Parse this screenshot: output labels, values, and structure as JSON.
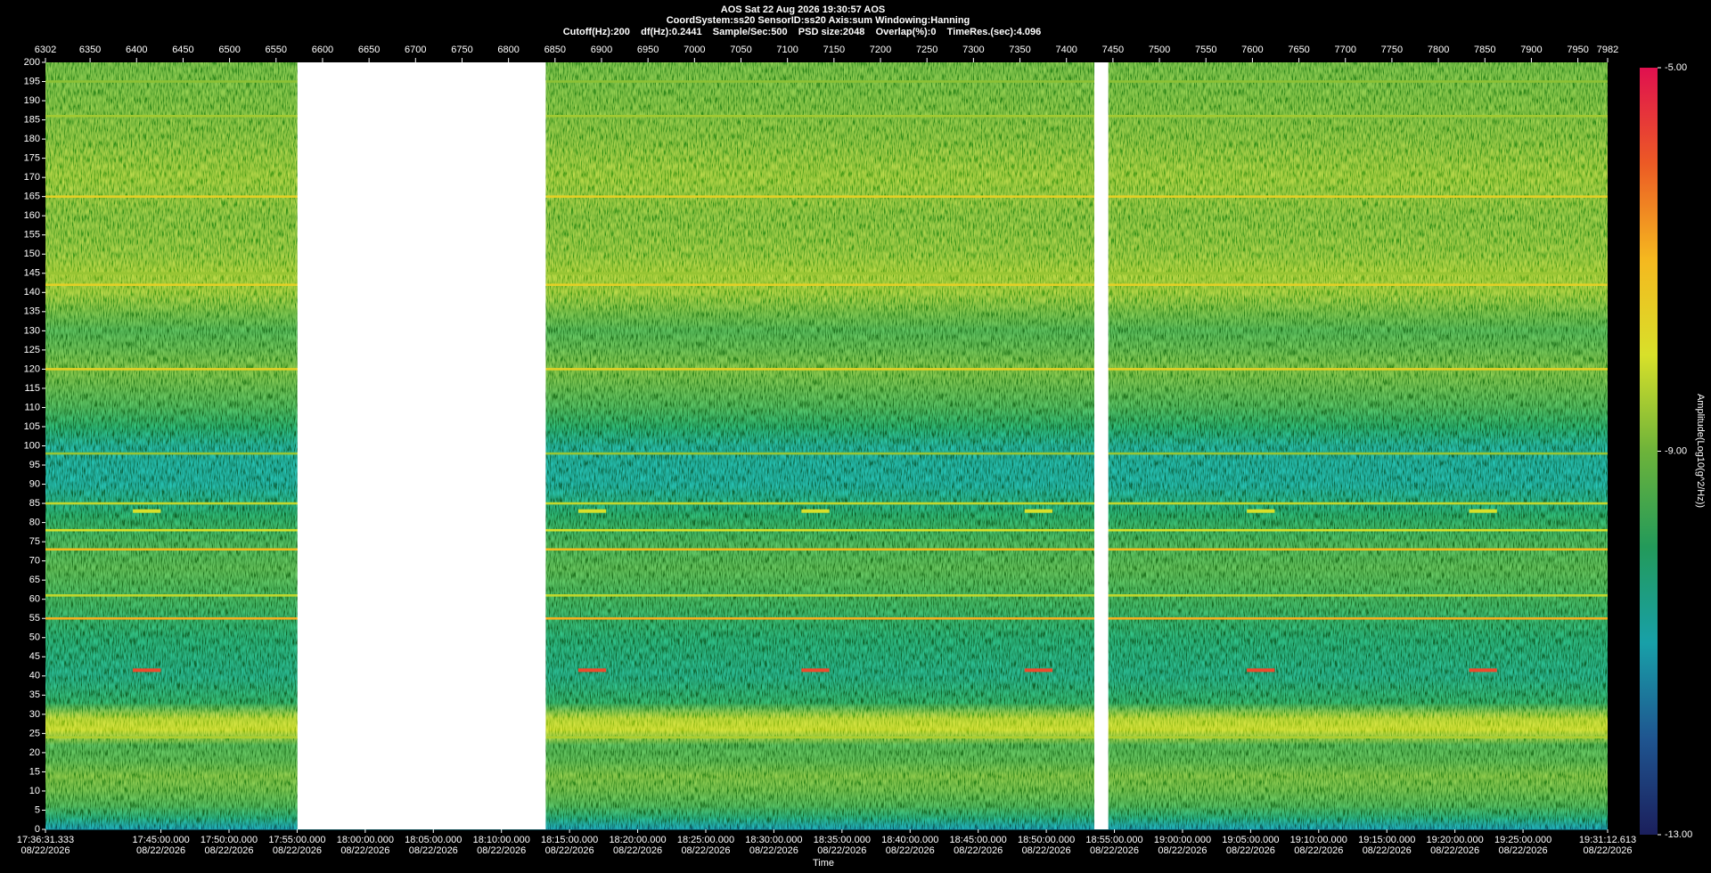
{
  "chart_data": {
    "type": "spectrogram",
    "title": "AOS  Sat 22 Aug 2026 19:30:57  AOS",
    "subtitle": "CoordSystem:ss20   SensorID:ss20   Axis:sum   Windowing:Hanning",
    "settings_line": "Cutoff(Hz):200    df(Hz):0.2441    Sample/Sec:500    PSD size:2048    Overlap(%):0    TimeRes.(sec):4.096",
    "xlabel": "Time",
    "xlim": [
      6302,
      7982
    ],
    "xticks": [
      6302,
      6350,
      6400,
      6450,
      6500,
      6550,
      6600,
      6650,
      6700,
      6750,
      6800,
      6850,
      6900,
      6950,
      7000,
      7050,
      7100,
      7150,
      7200,
      7250,
      7300,
      7350,
      7400,
      7450,
      7500,
      7550,
      7600,
      7650,
      7700,
      7750,
      7800,
      7850,
      7900,
      7950,
      7982
    ],
    "ylim": [
      0,
      200
    ],
    "yticks": [
      0,
      5,
      10,
      15,
      20,
      25,
      30,
      35,
      40,
      45,
      50,
      55,
      60,
      65,
      70,
      75,
      80,
      85,
      90,
      95,
      100,
      105,
      110,
      115,
      120,
      125,
      130,
      135,
      140,
      145,
      150,
      155,
      160,
      165,
      170,
      175,
      180,
      185,
      190,
      195,
      200
    ],
    "date": "08/22/2026",
    "time_ticks": [
      {
        "value": 63391.333,
        "label": "17:36:31.333"
      },
      {
        "value": 63900,
        "label": "17:45:00.000"
      },
      {
        "value": 64200,
        "label": "17:50:00.000"
      },
      {
        "value": 64500,
        "label": "17:55:00.000"
      },
      {
        "value": 64800,
        "label": "18:00:00.000"
      },
      {
        "value": 65100,
        "label": "18:05:00.000"
      },
      {
        "value": 65400,
        "label": "18:10:00.000"
      },
      {
        "value": 65700,
        "label": "18:15:00.000"
      },
      {
        "value": 66000,
        "label": "18:20:00.000"
      },
      {
        "value": 66300,
        "label": "18:25:00.000"
      },
      {
        "value": 66600,
        "label": "18:30:00.000"
      },
      {
        "value": 66900,
        "label": "18:35:00.000"
      },
      {
        "value": 67200,
        "label": "18:40:00.000"
      },
      {
        "value": 67500,
        "label": "18:45:00.000"
      },
      {
        "value": 67800,
        "label": "18:50:00.000"
      },
      {
        "value": 68100,
        "label": "18:55:00.000"
      },
      {
        "value": 68400,
        "label": "19:00:00.000"
      },
      {
        "value": 68700,
        "label": "19:05:00.000"
      },
      {
        "value": 69000,
        "label": "19:10:00.000"
      },
      {
        "value": 69300,
        "label": "19:15:00.000"
      },
      {
        "value": 69600,
        "label": "19:20:00.000"
      },
      {
        "value": 69900,
        "label": "19:25:00.000"
      },
      {
        "value": 70272.613,
        "label": "19:31:12.613"
      }
    ],
    "colorbar_label": "Amplitude(Log10(g^2/Hz))",
    "clim": [
      -13,
      -5
    ],
    "cticks": [
      {
        "value": -5,
        "label": "-5.00"
      },
      {
        "value": -9,
        "label": "-9.00"
      },
      {
        "value": -13,
        "label": "-13.00"
      }
    ],
    "colormap": [
      "#1b1f5c",
      "#1f5590",
      "#18a0a8",
      "#239a5a",
      "#6db33a",
      "#d8e02a",
      "#f5b81f",
      "#ec5a25",
      "#e0104f"
    ],
    "profile": {
      "freqs": [
        0,
        3,
        6,
        10,
        14,
        18,
        22,
        26,
        29,
        33,
        40,
        50,
        60,
        68,
        75,
        82,
        90,
        95,
        100,
        105,
        110,
        115,
        120,
        125,
        130,
        135,
        140,
        145,
        150,
        160,
        170,
        180,
        190,
        200
      ],
      "levels": [
        -11.2,
        -10.2,
        -9.6,
        -9.2,
        -9.0,
        -9.4,
        -9.5,
        -8.2,
        -8.4,
        -9.9,
        -10.3,
        -10.1,
        -9.7,
        -9.4,
        -9.6,
        -10.0,
        -10.6,
        -10.6,
        -10.5,
        -10.0,
        -9.6,
        -9.3,
        -9.0,
        -9.3,
        -9.5,
        -9.1,
        -8.7,
        -8.6,
        -8.8,
        -8.9,
        -8.7,
        -8.9,
        -9.0,
        -9.1
      ]
    },
    "lines": [
      {
        "freq": 195,
        "level": -8.7
      },
      {
        "freq": 186,
        "level": -8.5
      },
      {
        "freq": 165,
        "level": -7.6
      },
      {
        "freq": 145,
        "level": -8.6
      },
      {
        "freq": 142,
        "level": -7.6
      },
      {
        "freq": 120,
        "level": -7.6
      },
      {
        "freq": 98,
        "level": -8.6
      },
      {
        "freq": 85,
        "level": -8.2
      },
      {
        "freq": 78,
        "level": -8.0
      },
      {
        "freq": 73,
        "level": -7.1
      },
      {
        "freq": 61,
        "level": -8.2
      },
      {
        "freq": 55,
        "level": -6.9
      },
      {
        "freq": 24,
        "level": -8.4
      }
    ],
    "events": [
      {
        "freq": 41.5,
        "level": -5.8,
        "x": [
          6396,
          6875,
          7115,
          7355,
          7594,
          7833
        ],
        "width": 30
      },
      {
        "freq": 83,
        "level": -8.0,
        "x": [
          6396,
          6875,
          7115,
          7355,
          7594,
          7833
        ],
        "width": 30
      }
    ],
    "gaps": [
      [
        6573,
        6840
      ],
      [
        7430,
        7445
      ]
    ]
  }
}
